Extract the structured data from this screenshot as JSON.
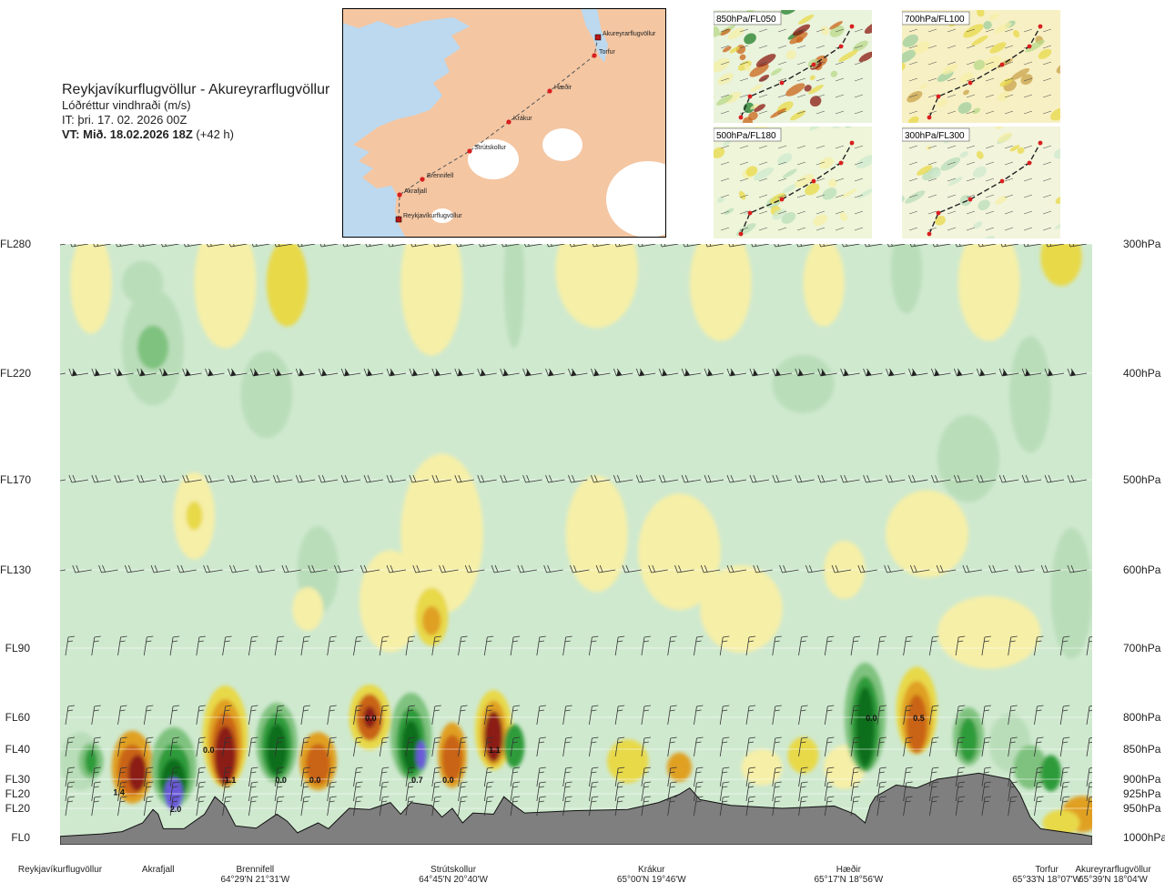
{
  "header": {
    "title": "Reykjavíkurflugvöllur - Akureyrarflugvöllur",
    "variable": "Lóðréttur vindhraði (m/s)",
    "it_line": "IT: þri. 17. 02. 2026 00Z",
    "vt_bold": "VT: Mið. 18.02.2026 18Z",
    "vt_lead": "(+42 h)"
  },
  "route_map": {
    "waypoints": [
      "Reykjavíkurflugvöllur",
      "Akrafjall",
      "Brennifell",
      "Strútskollur",
      "Krákur",
      "Hæðir",
      "Torfur",
      "Akureyrarflugvöllur"
    ],
    "colors": {
      "land": "#f4c6a2",
      "sea": "#bcd9ef",
      "ice": "#ffffff",
      "route": "#d91f1f"
    }
  },
  "inset_panels": [
    {
      "label": "850hPa/FL050"
    },
    {
      "label": "700hPa/FL100"
    },
    {
      "label": "500hPa/FL180"
    },
    {
      "label": "300hPa/FL300"
    }
  ],
  "chart_data": {
    "type": "heatmap",
    "title": "Reykjavíkurflugvöllur - Akureyrarflugvöllur",
    "value_label": "Lóðréttur vindhraði (m/s)",
    "y_left_ticks": [
      {
        "label": "FL280",
        "hpa": 300
      },
      {
        "label": "FL220",
        "hpa": 400
      },
      {
        "label": "FL170",
        "hpa": 500
      },
      {
        "label": "FL130",
        "hpa": 600
      },
      {
        "label": "FL90",
        "hpa": 700
      },
      {
        "label": "FL60",
        "hpa": 800
      },
      {
        "label": "FL40",
        "hpa": 850
      },
      {
        "label": "FL30",
        "hpa": 900
      },
      {
        "label": "FL20",
        "hpa": 925
      },
      {
        "label": "FL20",
        "hpa": 950
      },
      {
        "label": "FL0",
        "hpa": 1000
      }
    ],
    "y_right_ticks": [
      "300hPa",
      "400hPa",
      "500hPa",
      "600hPa",
      "700hPa",
      "800hPa",
      "850hPa",
      "900hPa",
      "925hPa",
      "950hPa",
      "1000hPa"
    ],
    "ylim_hpa": [
      1000,
      300
    ],
    "xlim_km": [
      0,
      100
    ],
    "x_waypoints": [
      {
        "name": "Reykjavíkurflugvöllur",
        "coord": "",
        "pos": 0
      },
      {
        "name": "Akrafjall",
        "coord": "",
        "pos": 9.5
      },
      {
        "name": "Brennifell",
        "coord": "64°29'N 21°31'W",
        "pos": 18.9
      },
      {
        "name": "Strútskollur",
        "coord": "64°45'N 20°40'W",
        "pos": 38.1
      },
      {
        "name": "Krákur",
        "coord": "65°00'N 19°46'W",
        "pos": 57.3
      },
      {
        "name": "Hæðir",
        "coord": "65°17'N 18°56'W",
        "pos": 76.4
      },
      {
        "name": "Torfur",
        "coord": "65°33'N 18°07'W",
        "pos": 95.6
      },
      {
        "name": "Akureyrarflugvöllur",
        "coord": "65°39'N 18°04'W",
        "pos": 100
      }
    ],
    "value_labels": [
      {
        "text": "1.4",
        "x": 5.7,
        "hpa": 921
      },
      {
        "text": "2.0",
        "x": 11.2,
        "hpa": 950
      },
      {
        "text": "0.0",
        "x": 14.4,
        "hpa": 850
      },
      {
        "text": "1.1",
        "x": 16.5,
        "hpa": 900
      },
      {
        "text": "0.0",
        "x": 21.4,
        "hpa": 900
      },
      {
        "text": "0.0",
        "x": 24.7,
        "hpa": 900
      },
      {
        "text": "0.0",
        "x": 30.1,
        "hpa": 800
      },
      {
        "text": "0.7",
        "x": 34.6,
        "hpa": 900
      },
      {
        "text": "0.0",
        "x": 37.6,
        "hpa": 900
      },
      {
        "text": "1.1",
        "x": 42.1,
        "hpa": 850
      },
      {
        "text": "0.0",
        "x": 78.6,
        "hpa": 800
      },
      {
        "text": "0.5",
        "x": 83.2,
        "hpa": 800
      }
    ],
    "colors": {
      "background": "#cfe9cf",
      "weak_up": "#f6efa7",
      "moderate_up": "#e8d94a",
      "strong_up": "#e0a023",
      "very_strong_up": "#c96418",
      "extreme_up": "#8b1a12",
      "weak_down": "#b9ddb9",
      "moderate_down": "#7fc27f",
      "strong_down": "#2f9b3a",
      "very_strong_down": "#0f6e1f",
      "extreme_down": "#6a5ad8",
      "terrain": "#7f7f7f"
    }
  }
}
